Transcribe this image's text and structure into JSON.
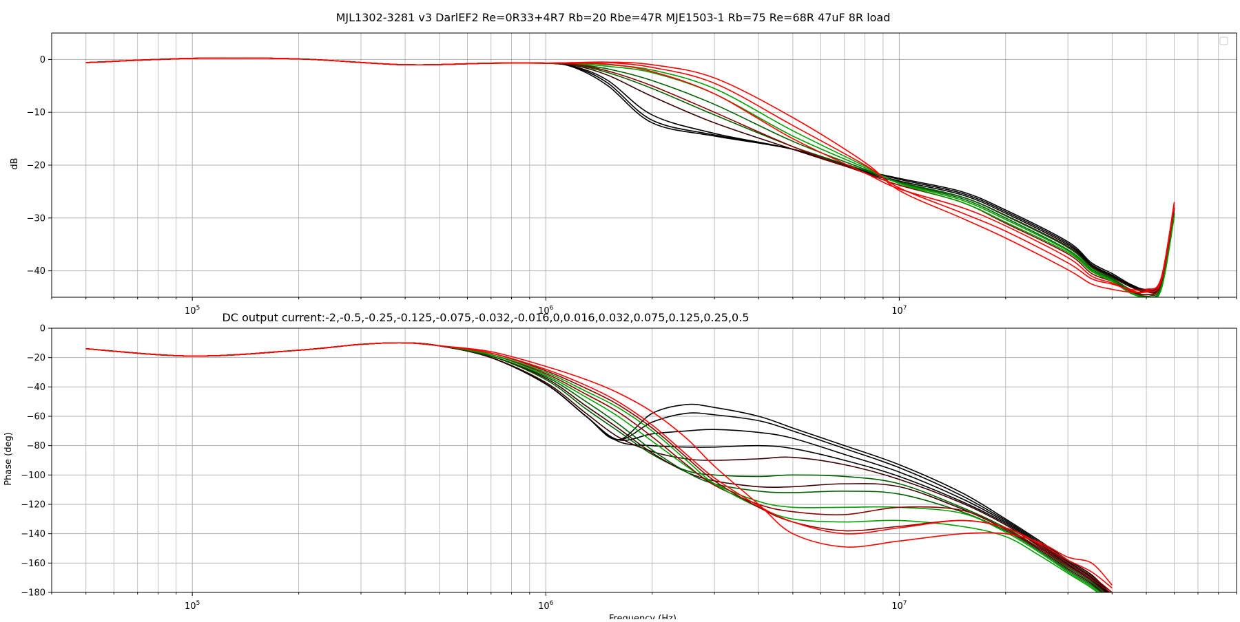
{
  "chart_data": [
    {
      "type": "line",
      "title": "MJL1302-3281 v3 DarlEF2 Re=0R33+4R7 Rb=20 Rbe=47R MJE1503-1 Rb=75 Re=68R 47uF 8R load",
      "xlabel": "",
      "ylabel": "dB",
      "xscale": "log",
      "xlim": [
        40000,
        90000000
      ],
      "ylim": [
        -45,
        5
      ],
      "yticks": [
        0,
        -10,
        -20,
        -30,
        -40
      ],
      "xticks": [
        "10^5",
        "10^6",
        "10^7"
      ],
      "grid": true,
      "legend": "top-right (empty)",
      "x": [
        50000,
        100000,
        200000,
        400000,
        700000,
        1000000,
        1200000,
        1500000,
        2000000,
        3000000,
        5000000,
        8000000,
        10000000,
        15000000,
        20000000,
        30000000,
        35000000,
        40000000,
        45000000,
        50000000,
        55000000,
        60000000
      ],
      "series": [
        {
          "color": "#000000",
          "values": [
            -0.6,
            0.2,
            0.1,
            -1.0,
            -0.7,
            -0.7,
            -1.5,
            -5.0,
            -12.0,
            -14.5,
            -17.0,
            -21.0,
            -22.5,
            -25.0,
            -28.5,
            -34.5,
            -38.5,
            -40.5,
            -42.5,
            -43.5,
            -42.0,
            -28.0
          ]
        },
        {
          "color": "#000000",
          "values": [
            -0.6,
            0.2,
            0.1,
            -1.0,
            -0.7,
            -0.7,
            -1.4,
            -4.5,
            -11.5,
            -14.3,
            -17.0,
            -21.0,
            -22.7,
            -25.3,
            -28.8,
            -34.8,
            -38.8,
            -40.8,
            -42.7,
            -43.7,
            -42.2,
            -28.2
          ]
        },
        {
          "color": "#000000",
          "values": [
            -0.6,
            0.2,
            0.1,
            -1.0,
            -0.7,
            -0.7,
            -1.3,
            -4.0,
            -10.5,
            -14.0,
            -17.0,
            -21.2,
            -23.0,
            -25.6,
            -29.1,
            -35.1,
            -39.0,
            -41.0,
            -42.9,
            -43.9,
            -42.4,
            -28.4
          ]
        },
        {
          "color": "#3a0000",
          "values": [
            -0.6,
            0.2,
            0.1,
            -1.0,
            -0.7,
            -0.7,
            -1.1,
            -3.0,
            -7.0,
            -12.0,
            -17.0,
            -21.4,
            -23.3,
            -26.0,
            -29.5,
            -35.4,
            -39.2,
            -41.2,
            -43.0,
            -44.0,
            -42.5,
            -28.0
          ]
        },
        {
          "color": "#006000",
          "values": [
            -0.6,
            0.2,
            0.1,
            -1.0,
            -0.7,
            -0.7,
            -1.0,
            -2.5,
            -5.5,
            -10.5,
            -16.5,
            -21.0,
            -23.2,
            -26.0,
            -29.6,
            -35.6,
            -39.4,
            -41.4,
            -43.5,
            -44.5,
            -43.0,
            -29.0
          ]
        },
        {
          "color": "#006000",
          "values": [
            -0.6,
            0.2,
            0.1,
            -1.0,
            -0.7,
            -0.7,
            -0.9,
            -1.8,
            -4.0,
            -8.5,
            -15.5,
            -20.8,
            -23.3,
            -26.3,
            -30.0,
            -36.0,
            -39.7,
            -41.6,
            -43.8,
            -44.8,
            -43.3,
            -29.3
          ]
        },
        {
          "color": "#00a000",
          "values": [
            -0.6,
            0.2,
            0.1,
            -1.0,
            -0.7,
            -0.7,
            -0.8,
            -1.3,
            -2.5,
            -6.5,
            -14.5,
            -20.5,
            -23.4,
            -26.6,
            -30.3,
            -36.2,
            -39.9,
            -41.8,
            -44.0,
            -45.0,
            -43.5,
            -29.5
          ]
        },
        {
          "color": "#8b0000",
          "values": [
            -0.6,
            0.2,
            0.1,
            -1.0,
            -0.7,
            -0.7,
            -0.9,
            -2.2,
            -5.0,
            -10.0,
            -16.5,
            -21.5,
            -23.8,
            -27.0,
            -31.0,
            -36.8,
            -40.5,
            -42.0,
            -43.8,
            -44.5,
            -42.5,
            -28.0
          ]
        },
        {
          "color": "#00a000",
          "values": [
            -0.6,
            0.2,
            0.1,
            -1.0,
            -0.7,
            -0.7,
            -0.7,
            -1.0,
            -2.0,
            -5.5,
            -13.5,
            -20.2,
            -23.5,
            -27.0,
            -30.8,
            -36.5,
            -40.1,
            -42.0,
            -44.2,
            -45.0,
            -43.7,
            -29.7
          ]
        },
        {
          "color": "#ff0000",
          "values": [
            -0.6,
            0.2,
            0.1,
            -1.0,
            -0.7,
            -0.7,
            -0.6,
            -0.6,
            -1.5,
            -4.5,
            -12.5,
            -20.0,
            -24.3,
            -29.0,
            -32.5,
            -38.5,
            -41.5,
            -42.5,
            -43.5,
            -43.5,
            -41.5,
            -27.0
          ]
        },
        {
          "color": "#ff0000",
          "values": [
            -0.6,
            0.2,
            0.1,
            -1.0,
            -0.7,
            -0.7,
            -0.7,
            -0.9,
            -2.3,
            -6.5,
            -15.0,
            -21.5,
            -24.5,
            -28.0,
            -31.5,
            -37.5,
            -41.0,
            -42.3,
            -43.7,
            -44.0,
            -42.0,
            -27.5
          ]
        },
        {
          "color": "#ff0000",
          "values": [
            -0.6,
            0.2,
            0.1,
            -1.0,
            -0.7,
            -0.7,
            -0.6,
            -0.5,
            -1.0,
            -3.5,
            -11.0,
            -19.5,
            -24.8,
            -30.0,
            -33.8,
            -39.8,
            -42.5,
            -43.5,
            -44.0,
            -43.8,
            -41.5,
            -27.0
          ]
        }
      ]
    },
    {
      "type": "line",
      "title": "DC output current:-2,-0.5,-0.25,-0.125,-0.075,-0.032,-0.016,0,0.016,0.032,0.075,0.125,0.25,0.5",
      "xlabel": "Frequency (Hz)",
      "ylabel": "Phase (deg)",
      "xscale": "log",
      "xlim": [
        40000,
        90000000
      ],
      "ylim": [
        -180,
        0
      ],
      "yticks": [
        0,
        -20,
        -40,
        -60,
        -80,
        -100,
        -120,
        -140,
        -160,
        -180
      ],
      "xticks": [
        "10^5",
        "10^6",
        "10^7"
      ],
      "grid": true,
      "x": [
        50000,
        100000,
        200000,
        300000,
        400000,
        500000,
        700000,
        1000000,
        1300000,
        1600000,
        2000000,
        2500000,
        3000000,
        4000000,
        5000000,
        7000000,
        10000000,
        15000000,
        20000000,
        25000000,
        30000000,
        35000000,
        40000000
      ],
      "series": [
        {
          "color": "#000000",
          "values": [
            -14,
            -19,
            -15,
            -11,
            -10,
            -12,
            -20,
            -38,
            -60,
            -76,
            -58,
            -52,
            -54,
            -60,
            -68,
            -80,
            -93,
            -112,
            -130,
            -145,
            -158,
            -168,
            -182
          ]
        },
        {
          "color": "#000000",
          "values": [
            -14,
            -19,
            -15,
            -11,
            -10,
            -12,
            -20,
            -38,
            -60,
            -76,
            -64,
            -58,
            -59,
            -63,
            -70,
            -82,
            -95,
            -114,
            -131,
            -146,
            -159,
            -169,
            -182
          ]
        },
        {
          "color": "#000000",
          "values": [
            -14,
            -19,
            -15,
            -11,
            -10,
            -12,
            -20,
            -38,
            -60,
            -76,
            -72,
            -70,
            -69,
            -71,
            -75,
            -86,
            -98,
            -116,
            -132,
            -147,
            -160,
            -170,
            -183
          ]
        },
        {
          "color": "#000000",
          "values": [
            -14,
            -19,
            -15,
            -11,
            -10,
            -12,
            -20,
            -38,
            -60,
            -77,
            -80,
            -81,
            -81,
            -80,
            -82,
            -90,
            -101,
            -118,
            -133,
            -148,
            -161,
            -171,
            -183
          ]
        },
        {
          "color": "#3a0000",
          "values": [
            -14,
            -19,
            -15,
            -11,
            -10,
            -12,
            -20,
            -37,
            -58,
            -74,
            -84,
            -89,
            -90,
            -89,
            -88,
            -93,
            -103,
            -119,
            -134,
            -149,
            -162,
            -172,
            -184
          ]
        },
        {
          "color": "#006000",
          "values": [
            -14,
            -19,
            -15,
            -11,
            -10,
            -12,
            -19,
            -35,
            -55,
            -70,
            -86,
            -97,
            -100,
            -101,
            -100,
            -101,
            -106,
            -122,
            -136,
            -150,
            -163,
            -173,
            -185
          ]
        },
        {
          "color": "#3a0000",
          "values": [
            -14,
            -19,
            -15,
            -11,
            -10,
            -12,
            -19,
            -34,
            -53,
            -68,
            -85,
            -98,
            -104,
            -108,
            -108,
            -106,
            -108,
            -123,
            -137,
            -151,
            -164,
            -174,
            -186
          ]
        },
        {
          "color": "#006000",
          "values": [
            -14,
            -19,
            -15,
            -11,
            -10,
            -12,
            -19,
            -33,
            -50,
            -65,
            -83,
            -98,
            -106,
            -111,
            -112,
            -111,
            -113,
            -125,
            -138,
            -152,
            -165,
            -175,
            -186
          ]
        },
        {
          "color": "#00a000",
          "values": [
            -14,
            -19,
            -15,
            -11,
            -10,
            -12,
            -18,
            -32,
            -47,
            -60,
            -77,
            -94,
            -106,
            -118,
            -122,
            -122,
            -122,
            -126,
            -139,
            -153,
            -166,
            -176,
            -187
          ]
        },
        {
          "color": "#8b0000",
          "values": [
            -14,
            -19,
            -15,
            -11,
            -10,
            -12,
            -18,
            -31,
            -45,
            -57,
            -74,
            -93,
            -107,
            -120,
            -125,
            -127,
            -122,
            -124,
            -137,
            -150,
            -162,
            -171,
            -181
          ]
        },
        {
          "color": "#00a000",
          "values": [
            -14,
            -19,
            -15,
            -11,
            -10,
            -12,
            -18,
            -30,
            -43,
            -54,
            -70,
            -90,
            -106,
            -122,
            -130,
            -132,
            -131,
            -135,
            -142,
            -155,
            -167,
            -177,
            -188
          ]
        },
        {
          "color": "#8b0000",
          "values": [
            -14,
            -19,
            -15,
            -11,
            -10,
            -12,
            -17,
            -29,
            -41,
            -52,
            -68,
            -88,
            -104,
            -122,
            -132,
            -138,
            -135,
            -131,
            -136,
            -148,
            -160,
            -169,
            -180
          ]
        },
        {
          "color": "#ff0000",
          "values": [
            -14,
            -19,
            -15,
            -11,
            -10,
            -12,
            -17,
            -28,
            -39,
            -50,
            -66,
            -86,
            -102,
            -121,
            -132,
            -140,
            -136,
            -131,
            -136,
            -147,
            -158,
            -166,
            -177
          ]
        },
        {
          "color": "#ff0000",
          "values": [
            -14,
            -19,
            -15,
            -11,
            -10,
            -12,
            -16,
            -26,
            -35,
            -44,
            -57,
            -75,
            -94,
            -120,
            -140,
            -149,
            -145,
            -140,
            -140,
            -146,
            -156,
            -160,
            -175
          ]
        }
      ]
    }
  ]
}
